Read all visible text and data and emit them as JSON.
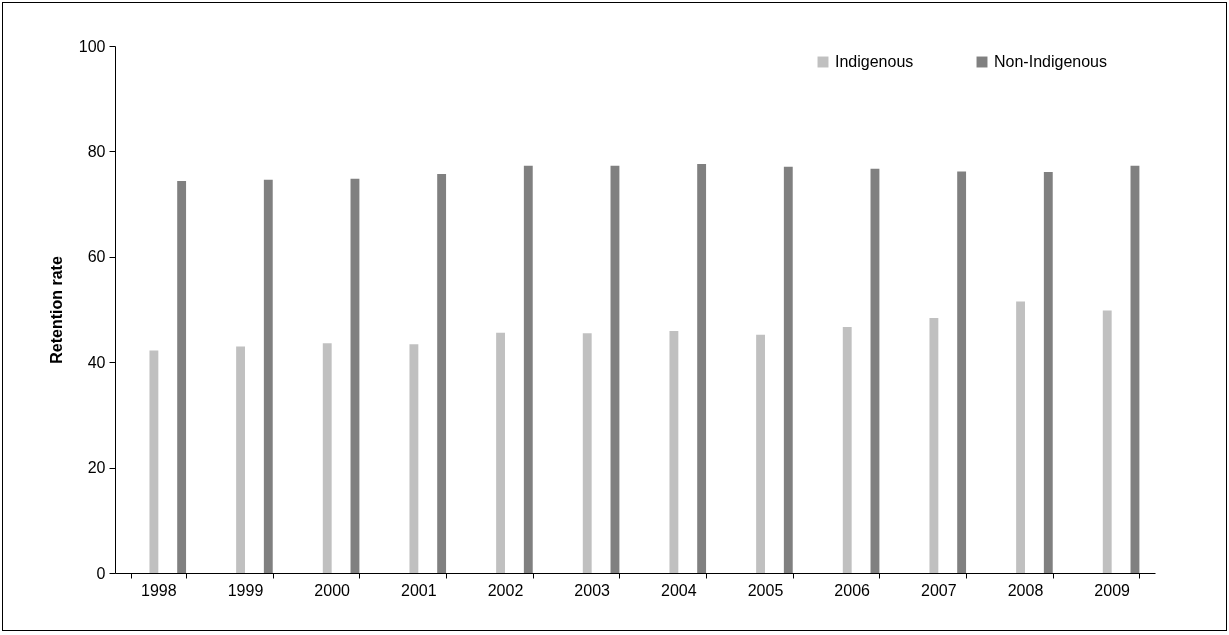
{
  "chart_data": {
    "type": "bar",
    "ylabel": "Retention rate",
    "categories": [
      "1998",
      "1999",
      "2000",
      "2001",
      "2002",
      "2003",
      "2004",
      "2005",
      "2006",
      "2007",
      "2008",
      "2009"
    ],
    "series": [
      {
        "name": "Indigenous",
        "color": "#c0c0c0",
        "values": [
          42.2,
          43.0,
          43.6,
          43.4,
          45.6,
          45.5,
          45.9,
          45.2,
          46.7,
          48.4,
          51.5,
          49.8
        ]
      },
      {
        "name": "Non-Indigenous",
        "color": "#808080",
        "values": [
          74.4,
          74.6,
          74.8,
          75.7,
          77.3,
          77.3,
          77.6,
          77.1,
          76.7,
          76.2,
          76.1,
          77.3
        ]
      }
    ],
    "ylim": [
      0,
      100
    ],
    "yticks": [
      0,
      20,
      40,
      60,
      80,
      100
    ],
    "grid": false,
    "legend": "top right"
  }
}
